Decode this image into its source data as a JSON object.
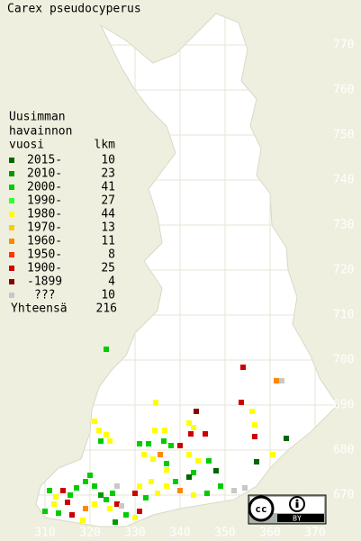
{
  "title": "Carex pseudocyperus",
  "legend": {
    "heading": [
      "Uusimman",
      "havainnon"
    ],
    "col_year": "vuosi",
    "col_count": "lkm",
    "items": [
      {
        "label": "2015-",
        "count": 10,
        "color": "#006600"
      },
      {
        "label": "2010-",
        "count": 23,
        "color": "#009900"
      },
      {
        "label": "2000-",
        "count": 41,
        "color": "#00cc00"
      },
      {
        "label": "1990-",
        "count": 27,
        "color": "#33ff33"
      },
      {
        "label": "1980-",
        "count": 44,
        "color": "#ffff00"
      },
      {
        "label": "1970-",
        "count": 13,
        "color": "#ffcc00"
      },
      {
        "label": "1960-",
        "count": 11,
        "color": "#ff8800"
      },
      {
        "label": "1950-",
        "count": 8,
        "color": "#ff3300"
      },
      {
        "label": "1900-",
        "count": 25,
        "color": "#cc0000"
      },
      {
        "label": "-1899",
        "count": 4,
        "color": "#880000"
      },
      {
        "label": "???",
        "count": 10,
        "color": "#c8c8c8"
      }
    ],
    "total_label": "Yhteensä",
    "total": 216
  },
  "xlim": [
    300,
    380
  ],
  "ylim": [
    660,
    780
  ],
  "xticks": [
    310,
    320,
    330,
    340,
    350,
    360,
    370
  ],
  "yticks": [
    670,
    680,
    690,
    700,
    710,
    720,
    730,
    740,
    750,
    760,
    770
  ],
  "license": "BY",
  "points": [
    [
      323.6,
      702.4,
      2
    ],
    [
      354,
      698.4,
      8
    ],
    [
      353.6,
      690.6,
      8
    ],
    [
      361.4,
      695.4,
      6
    ],
    [
      362.6,
      695.4,
      10
    ],
    [
      334.6,
      690.6,
      4
    ],
    [
      343.6,
      688.6,
      9
    ],
    [
      356,
      688.6,
      4
    ],
    [
      321,
      686.4,
      4
    ],
    [
      322,
      684.4,
      4
    ],
    [
      323.6,
      683.4,
      4
    ],
    [
      324.4,
      682,
      4
    ],
    [
      322.4,
      682,
      2
    ],
    [
      334.4,
      684.4,
      4
    ],
    [
      336.6,
      684.4,
      4
    ],
    [
      336.4,
      682,
      2
    ],
    [
      338,
      681,
      2
    ],
    [
      340,
      681,
      8
    ],
    [
      342.4,
      683.6,
      8
    ],
    [
      343,
      685,
      4
    ],
    [
      342,
      686,
      4
    ],
    [
      345.6,
      683.6,
      8
    ],
    [
      356.6,
      685.6,
      4
    ],
    [
      356.6,
      683,
      8
    ],
    [
      363.6,
      682.6,
      0
    ],
    [
      331,
      681.4,
      2
    ],
    [
      333,
      681.4,
      2
    ],
    [
      332,
      679,
      4
    ],
    [
      334,
      678,
      4
    ],
    [
      335.6,
      679,
      6
    ],
    [
      337,
      677,
      2
    ],
    [
      337,
      675.6,
      4
    ],
    [
      342,
      679,
      4
    ],
    [
      344,
      677.6,
      4
    ],
    [
      346.4,
      677.6,
      2
    ],
    [
      348,
      675.4,
      0
    ],
    [
      343,
      675,
      2
    ],
    [
      342,
      674,
      0
    ],
    [
      339,
      673,
      2
    ],
    [
      333.6,
      673,
      4
    ],
    [
      331,
      672,
      4
    ],
    [
      330,
      670.4,
      8
    ],
    [
      332.4,
      669.4,
      2
    ],
    [
      335,
      670.4,
      4
    ],
    [
      337,
      672,
      4
    ],
    [
      340,
      671,
      6
    ],
    [
      343,
      670,
      4
    ],
    [
      346,
      670.4,
      2
    ],
    [
      349,
      672,
      2
    ],
    [
      352,
      671,
      10
    ],
    [
      354.4,
      671.6,
      10
    ],
    [
      357,
      677.4,
      0
    ],
    [
      360.6,
      679,
      4
    ],
    [
      311,
      671,
      2
    ],
    [
      312.4,
      669.6,
      4
    ],
    [
      314,
      671,
      8
    ],
    [
      315.6,
      670,
      2
    ],
    [
      317,
      671.6,
      2
    ],
    [
      319,
      673,
      2
    ],
    [
      320,
      674.4,
      2
    ],
    [
      321,
      672,
      2
    ],
    [
      322.4,
      670,
      1
    ],
    [
      323.6,
      669,
      2
    ],
    [
      325,
      670.4,
      2
    ],
    [
      326,
      668,
      8
    ],
    [
      324.4,
      667,
      4
    ],
    [
      321,
      668,
      4
    ],
    [
      319,
      667,
      6
    ],
    [
      316,
      665.6,
      8
    ],
    [
      313,
      666,
      2
    ],
    [
      315,
      668.4,
      8
    ],
    [
      312,
      668,
      4
    ],
    [
      318.4,
      664.4,
      4
    ],
    [
      326,
      672,
      10
    ],
    [
      327,
      667.6,
      10
    ],
    [
      328,
      665.6,
      2
    ],
    [
      330,
      665,
      4
    ],
    [
      331,
      666.4,
      8
    ],
    [
      325.6,
      664,
      1
    ],
    [
      310,
      666.4,
      2
    ]
  ]
}
